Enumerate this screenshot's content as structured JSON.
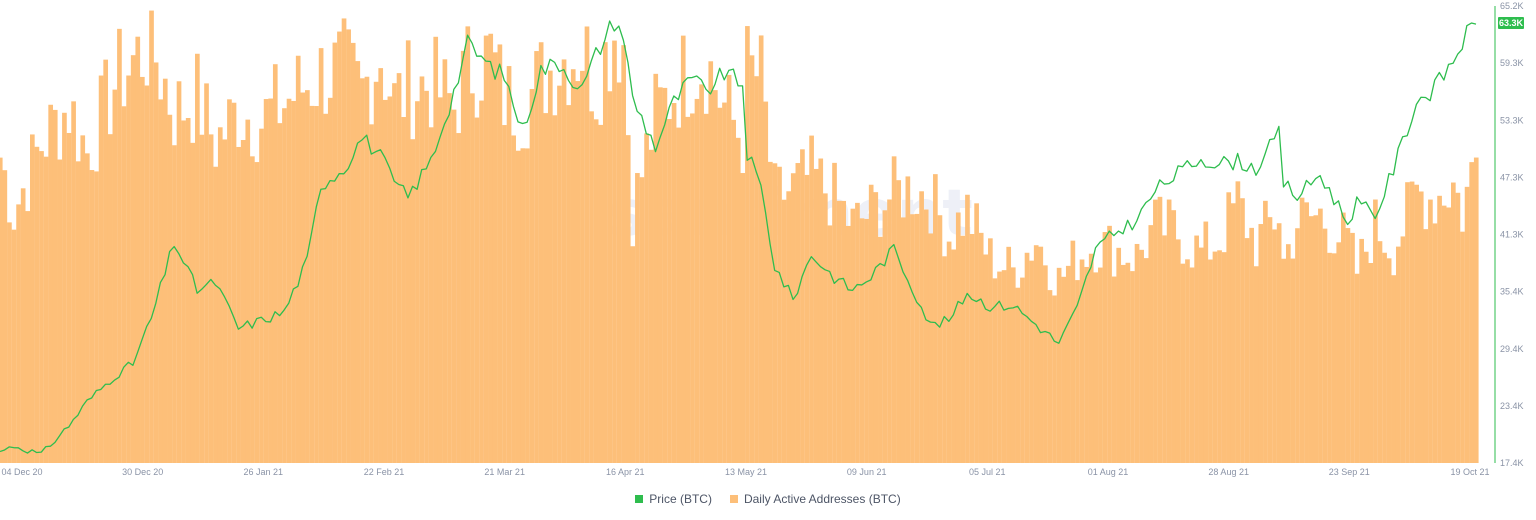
{
  "chart_data": {
    "type": "line",
    "x_tick_labels": [
      "04 Dec 20",
      "30 Dec 20",
      "26 Jan 21",
      "22 Feb 21",
      "21 Mar 21",
      "16 Apr 21",
      "13 May 21",
      "09 Jun 21",
      "05 Jul 21",
      "01 Aug 21",
      "28 Aug 21",
      "23 Sep 21",
      "19 Oct 21"
    ],
    "y_tick_labels": [
      "65.2K",
      "59.3K",
      "53.3K",
      "47.3K",
      "41.3K",
      "35.4K",
      "29.4K",
      "23.4K",
      "17.4K"
    ],
    "ylim": [
      17400,
      65200
    ],
    "current_price_label": "63.3K",
    "watermark": "santiment",
    "series": [
      {
        "name": "Price (BTC)",
        "kind": "line",
        "color": "#2ebd4e",
        "x": [
          "2020-12-01",
          "2020-12-04",
          "2020-12-10",
          "2020-12-16",
          "2020-12-20",
          "2020-12-26",
          "2020-12-30",
          "2021-01-03",
          "2021-01-08",
          "2021-01-13",
          "2021-01-17",
          "2021-01-22",
          "2021-01-27",
          "2021-02-01",
          "2021-02-06",
          "2021-02-09",
          "2021-02-14",
          "2021-02-18",
          "2021-02-22",
          "2021-02-25",
          "2021-02-28",
          "2021-03-05",
          "2021-03-10",
          "2021-03-13",
          "2021-03-18",
          "2021-03-21",
          "2021-03-25",
          "2021-03-29",
          "2021-04-02",
          "2021-04-07",
          "2021-04-10",
          "2021-04-14",
          "2021-04-16",
          "2021-04-18",
          "2021-04-23",
          "2021-04-27",
          "2021-05-01",
          "2021-05-04",
          "2021-05-08",
          "2021-05-12",
          "2021-05-13",
          "2021-05-16",
          "2021-05-19",
          "2021-05-23",
          "2021-05-27",
          "2021-06-01",
          "2021-06-05",
          "2021-06-09",
          "2021-06-14",
          "2021-06-18",
          "2021-06-22",
          "2021-06-26",
          "2021-06-30",
          "2021-07-05",
          "2021-07-10",
          "2021-07-15",
          "2021-07-20",
          "2021-07-24",
          "2021-07-28",
          "2021-08-01",
          "2021-08-06",
          "2021-08-10",
          "2021-08-14",
          "2021-08-20",
          "2021-08-24",
          "2021-08-28",
          "2021-09-01",
          "2021-09-06",
          "2021-09-07",
          "2021-09-10",
          "2021-09-15",
          "2021-09-21",
          "2021-09-23",
          "2021-09-27",
          "2021-10-01",
          "2021-10-06",
          "2021-10-10",
          "2021-10-14",
          "2021-10-16",
          "2021-10-19"
        ],
        "values": [
          18600,
          19200,
          18300,
          21300,
          23800,
          26500,
          27800,
          32500,
          40500,
          35500,
          36300,
          31500,
          32300,
          33200,
          38500,
          46500,
          48200,
          51500,
          49500,
          46700,
          45200,
          49000,
          56200,
          61200,
          58800,
          57900,
          52200,
          58500,
          59300,
          56500,
          60100,
          63700,
          62200,
          55500,
          50500,
          55200,
          57600,
          56200,
          58200,
          57000,
          49800,
          46200,
          38000,
          34500,
          39200,
          36800,
          35500,
          36900,
          39800,
          35800,
          31800,
          32300,
          35200,
          33800,
          33900,
          31900,
          29900,
          33600,
          39700,
          41400,
          42800,
          45900,
          47400,
          49300,
          48700,
          49000,
          48200,
          51800,
          46700,
          45300,
          47600,
          42600,
          44700,
          43200,
          48200,
          55200,
          56600,
          59500,
          61500,
          63300
        ]
      },
      {
        "name": "Daily Active Addresses (BTC)",
        "kind": "bar",
        "color": "#fdbf79",
        "x": [
          "2020-12-01",
          "2020-12-04",
          "2020-12-10",
          "2020-12-16",
          "2020-12-20",
          "2020-12-26",
          "2020-12-30",
          "2021-01-03",
          "2021-01-08",
          "2021-01-13",
          "2021-01-17",
          "2021-01-22",
          "2021-01-27",
          "2021-02-01",
          "2021-02-06",
          "2021-02-09",
          "2021-02-14",
          "2021-02-18",
          "2021-02-22",
          "2021-02-25",
          "2021-02-28",
          "2021-03-05",
          "2021-03-10",
          "2021-03-13",
          "2021-03-18",
          "2021-03-21",
          "2021-03-25",
          "2021-03-29",
          "2021-04-02",
          "2021-04-07",
          "2021-04-10",
          "2021-04-14",
          "2021-04-16",
          "2021-04-18",
          "2021-04-23",
          "2021-04-27",
          "2021-05-01",
          "2021-05-04",
          "2021-05-08",
          "2021-05-12",
          "2021-05-13",
          "2021-05-16",
          "2021-05-19",
          "2021-05-23",
          "2021-05-27",
          "2021-06-01",
          "2021-06-05",
          "2021-06-09",
          "2021-06-14",
          "2021-06-18",
          "2021-06-22",
          "2021-06-26",
          "2021-06-30",
          "2021-07-05",
          "2021-07-10",
          "2021-07-15",
          "2021-07-20",
          "2021-07-24",
          "2021-07-28",
          "2021-08-01",
          "2021-08-06",
          "2021-08-10",
          "2021-08-14",
          "2021-08-20",
          "2021-08-24",
          "2021-08-28",
          "2021-09-01",
          "2021-09-06",
          "2021-09-07",
          "2021-09-10",
          "2021-09-15",
          "2021-09-21",
          "2021-09-23",
          "2021-09-27",
          "2021-10-01",
          "2021-10-06",
          "2021-10-10",
          "2021-10-14",
          "2021-10-16",
          "2021-10-19"
        ],
        "values": [
          0.67,
          0.55,
          0.7,
          0.78,
          0.68,
          0.83,
          0.88,
          0.92,
          0.77,
          0.8,
          0.7,
          0.77,
          0.75,
          0.79,
          0.83,
          0.85,
          0.86,
          0.81,
          0.9,
          0.79,
          0.82,
          0.83,
          0.78,
          0.86,
          0.89,
          0.8,
          0.78,
          0.84,
          0.88,
          0.91,
          0.83,
          0.95,
          0.92,
          0.55,
          0.76,
          0.82,
          0.87,
          0.88,
          0.78,
          0.71,
          0.86,
          0.84,
          0.58,
          0.6,
          0.63,
          0.58,
          0.52,
          0.55,
          0.59,
          0.6,
          0.58,
          0.5,
          0.55,
          0.45,
          0.42,
          0.49,
          0.4,
          0.45,
          0.48,
          0.47,
          0.45,
          0.52,
          0.51,
          0.46,
          0.49,
          0.57,
          0.48,
          0.55,
          0.44,
          0.53,
          0.54,
          0.48,
          0.42,
          0.52,
          0.47,
          0.59,
          0.58,
          0.61,
          0.55,
          0.67
        ]
      }
    ],
    "legend": [
      {
        "label": "Price (BTC)",
        "color": "#2ebd4e"
      },
      {
        "label": "Daily Active Addresses (BTC)",
        "color": "#fdbf79"
      }
    ],
    "legend_position": "bottom-center",
    "right_axis_color": "#2ebd4e",
    "grid": false
  }
}
